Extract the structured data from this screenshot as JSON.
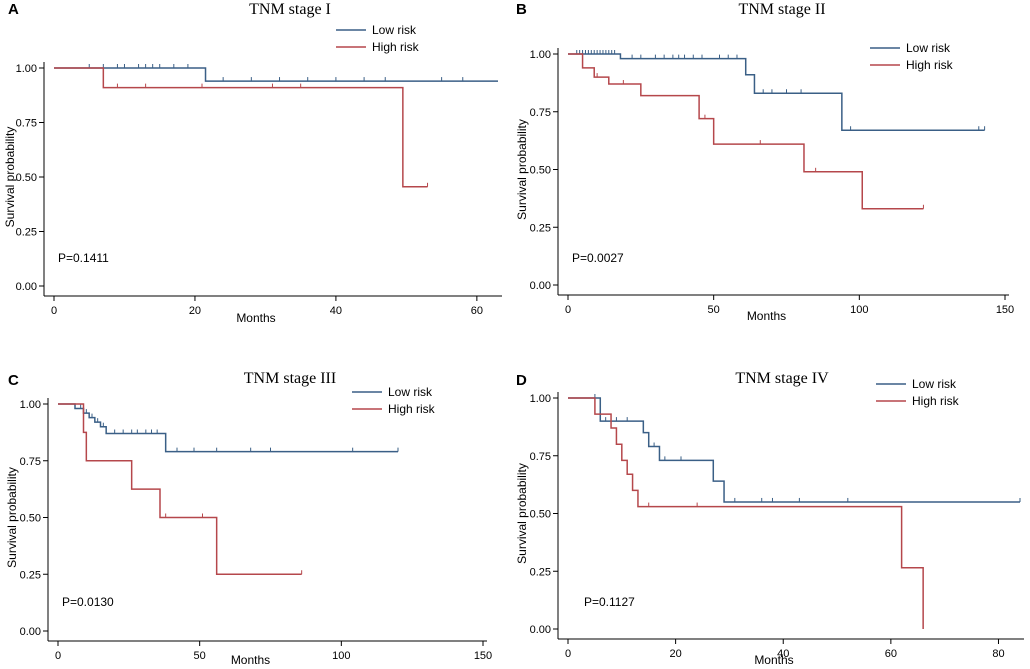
{
  "chart_data": [
    {
      "panel": "A",
      "type": "line",
      "title": "TNM stage I",
      "xlabel": "Months",
      "ylabel": "Survival probability",
      "xlim": [
        0,
        63
      ],
      "ylim": [
        0,
        1
      ],
      "xticks": [
        0,
        20,
        40,
        60
      ],
      "yticks": [
        0,
        0.25,
        0.5,
        0.75,
        1.0
      ],
      "ytick_labels": [
        "0.00",
        "0.25",
        "0.50",
        "0.75",
        "1.00"
      ],
      "p_value": "P=0.1411",
      "legend": [
        "Low risk",
        "High risk"
      ],
      "series": [
        {
          "name": "Low risk",
          "color": "#3a5f86",
          "steps": [
            [
              0,
              1.0
            ],
            [
              21.5,
              0.94
            ],
            [
              63,
              0.94
            ]
          ],
          "censors": [
            [
              5,
              1.0
            ],
            [
              7,
              1.0
            ],
            [
              9,
              1.0
            ],
            [
              10,
              1.0
            ],
            [
              12,
              1.0
            ],
            [
              13,
              1.0
            ],
            [
              14,
              1.0
            ],
            [
              15,
              1.0
            ],
            [
              17,
              1.0
            ],
            [
              19,
              1.0
            ],
            [
              24,
              0.94
            ],
            [
              28,
              0.94
            ],
            [
              32,
              0.94
            ],
            [
              36,
              0.94
            ],
            [
              40,
              0.94
            ],
            [
              44,
              0.94
            ],
            [
              47,
              0.94
            ],
            [
              55,
              0.94
            ],
            [
              58,
              0.94
            ]
          ]
        },
        {
          "name": "High risk",
          "color": "#b5474b",
          "steps": [
            [
              0,
              1.0
            ],
            [
              7,
              0.91
            ],
            [
              49.5,
              0.455
            ],
            [
              53,
              0.455
            ]
          ],
          "censors": [
            [
              9,
              0.91
            ],
            [
              13,
              0.91
            ],
            [
              21,
              0.91
            ],
            [
              31,
              0.91
            ],
            [
              35,
              0.91
            ],
            [
              53,
              0.455
            ]
          ]
        }
      ]
    },
    {
      "panel": "B",
      "type": "line",
      "title": "TNM stage II",
      "xlabel": "Months",
      "ylabel": "Survival probability",
      "xlim": [
        0,
        150
      ],
      "ylim": [
        0,
        1
      ],
      "xticks": [
        0,
        50,
        100,
        150
      ],
      "yticks": [
        0,
        0.25,
        0.5,
        0.75,
        1.0
      ],
      "ytick_labels": [
        "0.00",
        "0.25",
        "0.50",
        "0.75",
        "1.00"
      ],
      "p_value": "P=0.0027",
      "legend": [
        "Low risk",
        "High risk"
      ],
      "series": [
        {
          "name": "Low risk",
          "color": "#3a5f86",
          "steps": [
            [
              0,
              1.0
            ],
            [
              18,
              0.98
            ],
            [
              61,
              0.91
            ],
            [
              64,
              0.83
            ],
            [
              94,
              0.67
            ],
            [
              143,
              0.67
            ]
          ],
          "censors": [
            [
              3,
              1.0
            ],
            [
              4,
              1.0
            ],
            [
              5,
              1.0
            ],
            [
              6,
              1.0
            ],
            [
              7,
              1.0
            ],
            [
              8,
              1.0
            ],
            [
              9,
              1.0
            ],
            [
              10,
              1.0
            ],
            [
              11,
              1.0
            ],
            [
              12,
              1.0
            ],
            [
              13,
              1.0
            ],
            [
              14,
              1.0
            ],
            [
              15,
              1.0
            ],
            [
              16,
              1.0
            ],
            [
              22,
              0.98
            ],
            [
              25,
              0.98
            ],
            [
              30,
              0.98
            ],
            [
              33,
              0.98
            ],
            [
              36,
              0.98
            ],
            [
              38,
              0.98
            ],
            [
              40,
              0.98
            ],
            [
              43,
              0.98
            ],
            [
              46,
              0.98
            ],
            [
              52,
              0.98
            ],
            [
              55,
              0.98
            ],
            [
              58,
              0.98
            ],
            [
              67,
              0.83
            ],
            [
              70,
              0.83
            ],
            [
              75,
              0.83
            ],
            [
              80,
              0.83
            ],
            [
              97,
              0.67
            ],
            [
              141,
              0.67
            ],
            [
              143,
              0.67
            ]
          ]
        },
        {
          "name": "High risk",
          "color": "#b5474b",
          "steps": [
            [
              0,
              1.0
            ],
            [
              5,
              0.94
            ],
            [
              9,
              0.9
            ],
            [
              14,
              0.87
            ],
            [
              25,
              0.82
            ],
            [
              45,
              0.72
            ],
            [
              50,
              0.61
            ],
            [
              81,
              0.49
            ],
            [
              101,
              0.33
            ],
            [
              122,
              0.33
            ]
          ],
          "censors": [
            [
              10,
              0.9
            ],
            [
              19,
              0.87
            ],
            [
              47,
              0.72
            ],
            [
              66,
              0.61
            ],
            [
              85,
              0.49
            ],
            [
              122,
              0.33
            ]
          ]
        }
      ]
    },
    {
      "panel": "C",
      "type": "line",
      "title": "TNM stage III",
      "xlabel": "Months",
      "ylabel": "Survival probability",
      "xlim": [
        0,
        150
      ],
      "ylim": [
        0,
        1
      ],
      "xticks": [
        0,
        50,
        100,
        150
      ],
      "yticks": [
        0,
        0.25,
        0.5,
        0.75,
        1.0
      ],
      "ytick_labels": [
        "0.00",
        "0.25",
        "0.50",
        "0.75",
        "1.00"
      ],
      "p_value": "P=0.0130",
      "legend": [
        "Low risk",
        "High risk"
      ],
      "series": [
        {
          "name": "Low risk",
          "color": "#3a5f86",
          "steps": [
            [
              0,
              1.0
            ],
            [
              6,
              0.98
            ],
            [
              9,
              0.96
            ],
            [
              11,
              0.94
            ],
            [
              13,
              0.92
            ],
            [
              15,
              0.9
            ],
            [
              17,
              0.87
            ],
            [
              38,
              0.79
            ],
            [
              120,
              0.79
            ]
          ],
          "censors": [
            [
              8,
              0.98
            ],
            [
              10,
              0.96
            ],
            [
              12,
              0.94
            ],
            [
              14,
              0.92
            ],
            [
              16,
              0.9
            ],
            [
              20,
              0.87
            ],
            [
              23,
              0.87
            ],
            [
              26,
              0.87
            ],
            [
              28,
              0.87
            ],
            [
              31,
              0.87
            ],
            [
              33,
              0.87
            ],
            [
              35,
              0.87
            ],
            [
              42,
              0.79
            ],
            [
              48,
              0.79
            ],
            [
              56,
              0.79
            ],
            [
              68,
              0.79
            ],
            [
              75,
              0.79
            ],
            [
              104,
              0.79
            ],
            [
              120,
              0.79
            ]
          ]
        },
        {
          "name": "High risk",
          "color": "#b5474b",
          "steps": [
            [
              0,
              1.0
            ],
            [
              9,
              0.875
            ],
            [
              10,
              0.75
            ],
            [
              26,
              0.625
            ],
            [
              36,
              0.5
            ],
            [
              56,
              0.25
            ],
            [
              86,
              0.25
            ]
          ],
          "censors": [
            [
              38,
              0.5
            ],
            [
              51,
              0.5
            ],
            [
              86,
              0.25
            ]
          ]
        }
      ]
    },
    {
      "panel": "D",
      "type": "line",
      "title": "TNM stage IV",
      "xlabel": "Months",
      "ylabel": "Survival probability",
      "xlim": [
        0,
        84
      ],
      "ylim": [
        0,
        1
      ],
      "xticks": [
        0,
        20,
        40,
        60,
        80
      ],
      "yticks": [
        0,
        0.25,
        0.5,
        0.75,
        1.0
      ],
      "ytick_labels": [
        "0.00",
        "0.25",
        "0.50",
        "0.75",
        "1.00"
      ],
      "p_value": "P=0.1127",
      "legend": [
        "Low risk",
        "High risk"
      ],
      "series": [
        {
          "name": "Low risk",
          "color": "#3a5f86",
          "steps": [
            [
              0,
              1.0
            ],
            [
              6,
              0.9
            ],
            [
              14,
              0.85
            ],
            [
              15,
              0.79
            ],
            [
              17,
              0.73
            ],
            [
              27,
              0.64
            ],
            [
              29,
              0.55
            ],
            [
              84,
              0.55
            ]
          ],
          "censors": [
            [
              5,
              1.0
            ],
            [
              7,
              0.9
            ],
            [
              9,
              0.9
            ],
            [
              11,
              0.9
            ],
            [
              16,
              0.79
            ],
            [
              18,
              0.73
            ],
            [
              21,
              0.73
            ],
            [
              31,
              0.55
            ],
            [
              36,
              0.55
            ],
            [
              38,
              0.55
            ],
            [
              43,
              0.55
            ],
            [
              52,
              0.55
            ],
            [
              84,
              0.55
            ]
          ]
        },
        {
          "name": "High risk",
          "color": "#b5474b",
          "steps": [
            [
              0,
              1.0
            ],
            [
              5,
              0.93
            ],
            [
              8,
              0.87
            ],
            [
              9,
              0.8
            ],
            [
              10,
              0.73
            ],
            [
              11,
              0.67
            ],
            [
              12,
              0.6
            ],
            [
              13,
              0.53
            ],
            [
              62,
              0.265
            ],
            [
              66,
              0.0
            ],
            [
              66,
              0.0
            ]
          ],
          "censors": [
            [
              15,
              0.53
            ],
            [
              24,
              0.53
            ]
          ]
        }
      ]
    }
  ]
}
